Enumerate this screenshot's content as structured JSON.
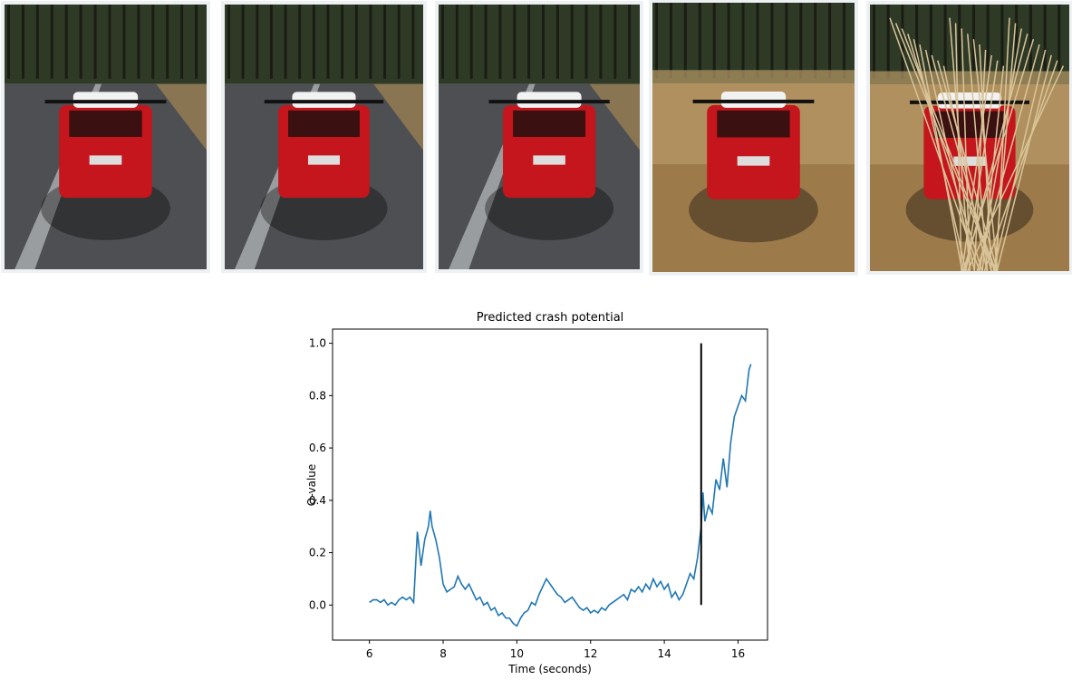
{
  "chart_data": {
    "type": "line",
    "title": "Predicted crash potential",
    "xlabel": "Time (seconds)",
    "ylabel": "Q-value",
    "x": [
      6.0,
      6.1,
      6.2,
      6.3,
      6.4,
      6.5,
      6.6,
      6.7,
      6.8,
      6.9,
      7.0,
      7.1,
      7.2,
      7.3,
      7.4,
      7.5,
      7.6,
      7.65,
      7.7,
      7.8,
      7.9,
      8.0,
      8.1,
      8.2,
      8.3,
      8.4,
      8.5,
      8.6,
      8.7,
      8.8,
      8.9,
      9.0,
      9.1,
      9.2,
      9.3,
      9.4,
      9.5,
      9.6,
      9.7,
      9.8,
      9.9,
      10.0,
      10.1,
      10.2,
      10.3,
      10.4,
      10.5,
      10.6,
      10.7,
      10.8,
      10.9,
      11.0,
      11.1,
      11.2,
      11.3,
      11.4,
      11.5,
      11.6,
      11.7,
      11.8,
      11.9,
      12.0,
      12.1,
      12.2,
      12.3,
      12.4,
      12.5,
      12.6,
      12.7,
      12.8,
      12.9,
      13.0,
      13.1,
      13.2,
      13.3,
      13.4,
      13.5,
      13.6,
      13.7,
      13.8,
      13.9,
      14.0,
      14.1,
      14.2,
      14.3,
      14.4,
      14.5,
      14.6,
      14.7,
      14.8,
      14.9,
      15.0,
      15.05,
      15.1,
      15.2,
      15.3,
      15.4,
      15.5,
      15.6,
      15.7,
      15.8,
      15.9,
      16.0,
      16.1,
      16.2,
      16.3,
      16.35
    ],
    "series": [
      {
        "color": "#1f77b4",
        "values": [
          0.01,
          0.02,
          0.02,
          0.01,
          0.02,
          0.0,
          0.01,
          0.0,
          0.02,
          0.03,
          0.02,
          0.03,
          0.01,
          0.28,
          0.15,
          0.25,
          0.3,
          0.36,
          0.3,
          0.25,
          0.18,
          0.08,
          0.05,
          0.06,
          0.07,
          0.11,
          0.08,
          0.06,
          0.08,
          0.05,
          0.02,
          0.03,
          0.0,
          0.01,
          -0.02,
          -0.01,
          -0.04,
          -0.03,
          -0.05,
          -0.05,
          -0.07,
          -0.08,
          -0.05,
          -0.03,
          -0.02,
          0.01,
          0.0,
          0.04,
          0.07,
          0.1,
          0.08,
          0.06,
          0.04,
          0.03,
          0.01,
          0.02,
          0.03,
          0.01,
          -0.01,
          -0.02,
          -0.01,
          -0.03,
          -0.02,
          -0.03,
          -0.01,
          -0.02,
          0.0,
          0.01,
          0.02,
          0.03,
          0.04,
          0.02,
          0.06,
          0.05,
          0.07,
          0.05,
          0.08,
          0.06,
          0.1,
          0.07,
          0.09,
          0.06,
          0.08,
          0.03,
          0.05,
          0.02,
          0.04,
          0.08,
          0.12,
          0.1,
          0.18,
          0.3,
          0.43,
          0.32,
          0.38,
          0.35,
          0.48,
          0.44,
          0.56,
          0.45,
          0.62,
          0.72,
          0.76,
          0.8,
          0.78,
          0.9,
          0.92
        ]
      }
    ],
    "vlines": [
      {
        "x": 15,
        "ymin": 0,
        "ymax": 1,
        "color": "#000000"
      }
    ],
    "xlim": [
      5.0,
      16.8
    ],
    "ylim": [
      -0.134,
      1.054
    ],
    "xticks": [
      6,
      8,
      10,
      12,
      14,
      16
    ],
    "yticks": [
      {
        "value": 0,
        "label": "0.0"
      },
      0.2,
      0.4,
      0.6,
      0.8,
      {
        "value": 1,
        "label": "1.0"
      }
    ]
  }
}
